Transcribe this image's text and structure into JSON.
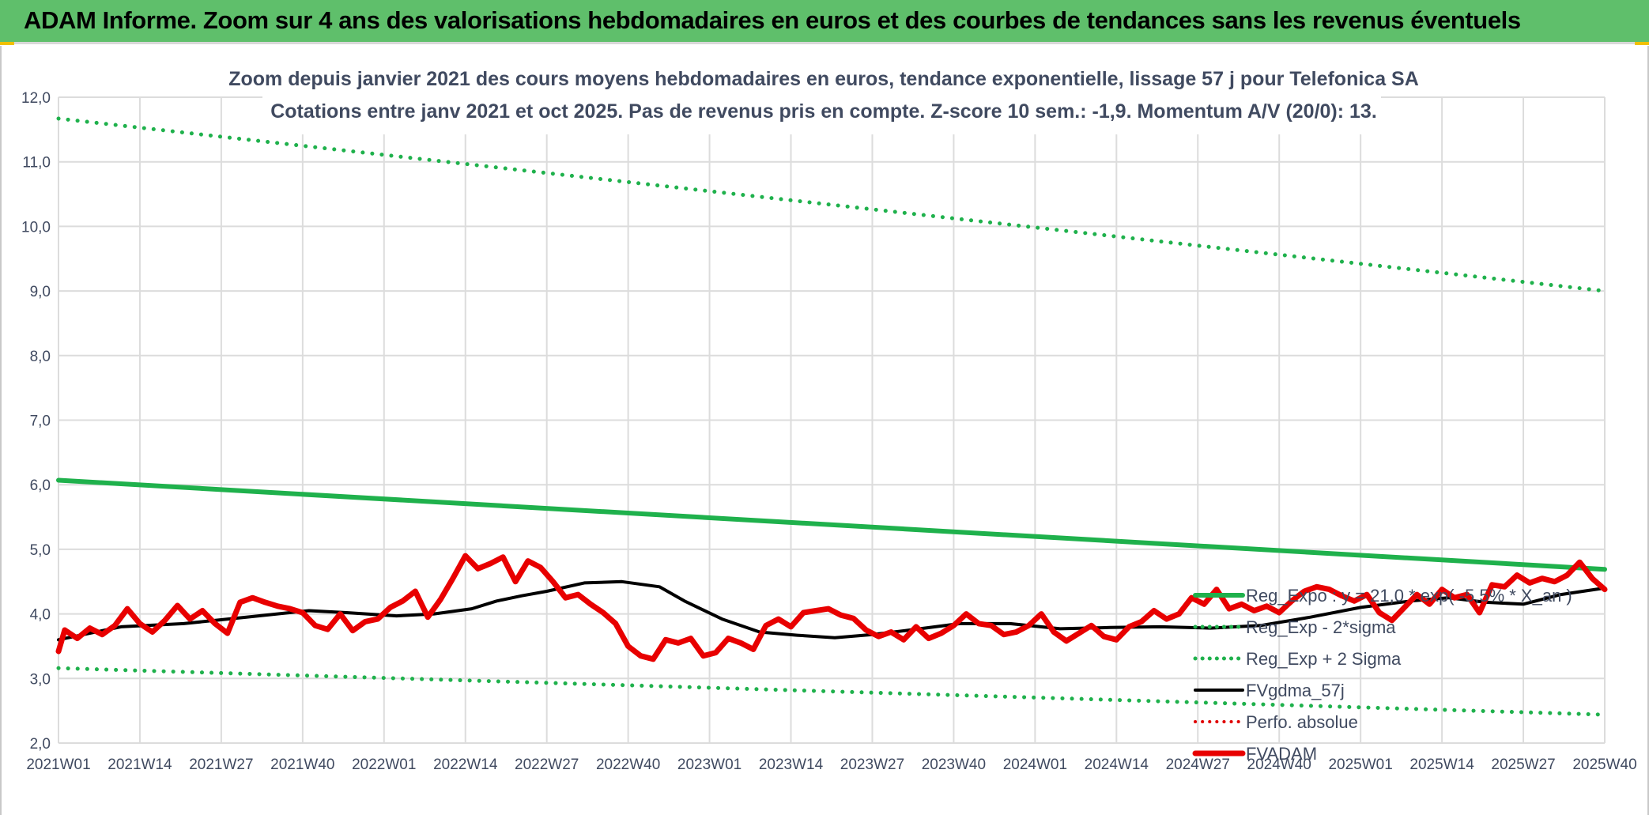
{
  "banner": {
    "title": "ADAM Informe. Zoom sur 4 ans des valorisations hebdomadaires en euros et des courbes de tendances sans les revenus éventuels",
    "color": "#5fbf6b"
  },
  "chart_data": {
    "type": "line",
    "title": "Zoom depuis janvier 2021 des cours moyens hebdomadaires en euros, tendance exponentielle, lissage 57 j pour Telefonica SA",
    "subtitle": "Cotations entre janv 2021 et oct 2025. Pas de revenus pris en compte. Z-score 10 sem.: -1,9. Momentum A/V (20/0): 13.",
    "xlabel": "",
    "ylabel": "",
    "ylim": [
      2.0,
      12.0
    ],
    "ytick_labels": [
      "2,0",
      "3,0",
      "4,0",
      "5,0",
      "6,0",
      "7,0",
      "8,0",
      "9,0",
      "10,0",
      "11,0",
      "12,0"
    ],
    "x_tick_labels": [
      "2021W01",
      "2021W14",
      "2021W27",
      "2021W40",
      "2022W01",
      "2022W14",
      "2022W27",
      "2022W40",
      "2023W01",
      "2023W14",
      "2023W27",
      "2023W40",
      "2024W01",
      "2024W14",
      "2024W27",
      "2024W40",
      "2025W01",
      "2025W14",
      "2025W27",
      "2025W40"
    ],
    "x_range_weeks": [
      0,
      247
    ],
    "grid": true,
    "legend_position": "bottom-right",
    "series": [
      {
        "name": "Reg_Expo : y = 21,0 * exp( -5,5% *  X_an )",
        "style": "solid",
        "color": "#1fb14c",
        "width": 6,
        "x": [
          0,
          247
        ],
        "values": [
          6.07,
          4.69
        ]
      },
      {
        "name": "Reg_Exp - 2*sigma",
        "style": "dotted",
        "color": "#1fb14c",
        "width": 5,
        "x": [
          0,
          247
        ],
        "values": [
          3.16,
          2.44
        ]
      },
      {
        "name": "Reg_Exp + 2 Sigma",
        "style": "dotted",
        "color": "#1fb14c",
        "width": 5,
        "x": [
          0,
          247
        ],
        "values": [
          11.67,
          9.0
        ]
      },
      {
        "name": "FVgdma_57j",
        "style": "solid",
        "color": "#000000",
        "width": 4,
        "x": [
          0,
          10,
          20,
          30,
          40,
          46,
          54,
          60,
          66,
          70,
          74,
          78,
          84,
          90,
          96,
          100,
          106,
          112,
          118,
          124,
          130,
          136,
          144,
          152,
          160,
          168,
          176,
          184,
          192,
          200,
          208,
          216,
          222,
          228,
          234,
          240,
          247
        ],
        "values": [
          3.6,
          3.8,
          3.85,
          3.95,
          4.05,
          4.02,
          3.97,
          4.0,
          4.08,
          4.2,
          4.28,
          4.35,
          4.48,
          4.5,
          4.42,
          4.2,
          3.92,
          3.72,
          3.67,
          3.63,
          3.68,
          3.75,
          3.85,
          3.85,
          3.77,
          3.79,
          3.8,
          3.78,
          3.82,
          3.95,
          4.1,
          4.2,
          4.25,
          4.18,
          4.15,
          4.3,
          4.4
        ]
      },
      {
        "name": "Perfo. absolue",
        "style": "dotted",
        "color": "#e00000",
        "width": 4,
        "x": [],
        "values": []
      },
      {
        "name": "FVADAM",
        "style": "solid",
        "color": "#e80000",
        "width": 7,
        "x": [
          0,
          1,
          3,
          5,
          7,
          9,
          11,
          13,
          15,
          17,
          19,
          21,
          23,
          25,
          27,
          29,
          31,
          33,
          35,
          37,
          39,
          41,
          43,
          45,
          47,
          49,
          51,
          53,
          55,
          57,
          59,
          61,
          63,
          65,
          67,
          69,
          71,
          73,
          75,
          77,
          79,
          81,
          83,
          85,
          87,
          89,
          91,
          93,
          95,
          97,
          99,
          101,
          103,
          105,
          107,
          109,
          111,
          113,
          115,
          117,
          119,
          121,
          123,
          125,
          127,
          129,
          131,
          133,
          135,
          137,
          139,
          141,
          143,
          145,
          147,
          149,
          151,
          153,
          155,
          157,
          159,
          161,
          163,
          165,
          167,
          169,
          171,
          173,
          175,
          177,
          179,
          181,
          183,
          185,
          187,
          189,
          191,
          193,
          195,
          197,
          199,
          201,
          203,
          205,
          207,
          209,
          211,
          213,
          215,
          217,
          219,
          221,
          223,
          225,
          227,
          229,
          231,
          233,
          235,
          237,
          239,
          241,
          243,
          245,
          247
        ],
        "values": [
          3.42,
          3.75,
          3.62,
          3.78,
          3.68,
          3.82,
          4.08,
          3.85,
          3.72,
          3.9,
          4.13,
          3.92,
          4.05,
          3.85,
          3.7,
          4.18,
          4.25,
          4.18,
          4.12,
          4.08,
          4.02,
          3.82,
          3.76,
          4.0,
          3.74,
          3.88,
          3.92,
          4.1,
          4.2,
          4.35,
          3.95,
          4.22,
          4.55,
          4.9,
          4.7,
          4.78,
          4.88,
          4.5,
          4.82,
          4.72,
          4.5,
          4.25,
          4.3,
          4.15,
          4.02,
          3.85,
          3.5,
          3.35,
          3.3,
          3.6,
          3.55,
          3.62,
          3.35,
          3.4,
          3.62,
          3.55,
          3.45,
          3.82,
          3.92,
          3.8,
          4.02,
          4.05,
          4.08,
          3.98,
          3.93,
          3.75,
          3.65,
          3.72,
          3.6,
          3.8,
          3.62,
          3.7,
          3.82,
          4.0,
          3.85,
          3.82,
          3.68,
          3.72,
          3.82,
          4.0,
          3.72,
          3.58,
          3.7,
          3.82,
          3.65,
          3.6,
          3.8,
          3.88,
          4.05,
          3.92,
          4.0,
          4.25,
          4.15,
          4.38,
          4.08,
          4.15,
          4.05,
          4.12,
          4.02,
          4.2,
          4.35,
          4.42,
          4.38,
          4.28,
          4.2,
          4.3,
          4.02,
          3.9,
          4.1,
          4.3,
          4.15,
          4.38,
          4.25,
          4.3,
          4.02,
          4.45,
          4.42,
          4.6,
          4.48,
          4.55,
          4.5,
          4.6,
          4.8,
          4.55,
          4.38
        ]
      }
    ]
  }
}
